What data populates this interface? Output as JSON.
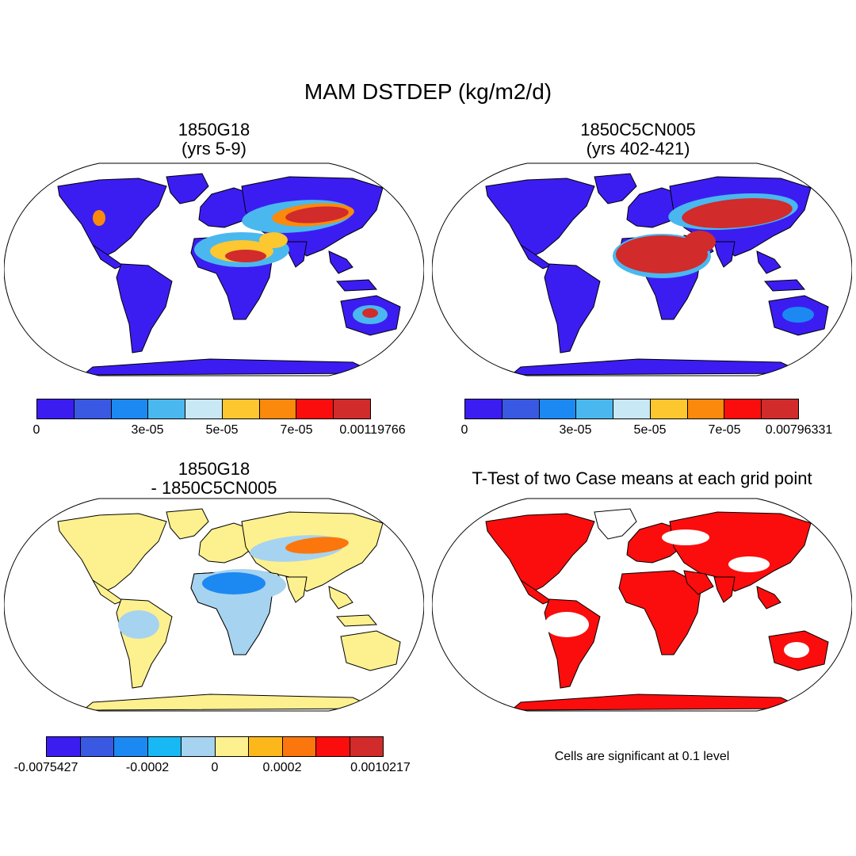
{
  "title": "MAM DSTDEP (kg/m2/d)",
  "panels": [
    {
      "id": "tl",
      "title_line1": "1850G18",
      "title_line2": "(yrs 5-9)",
      "type": "field"
    },
    {
      "id": "tr",
      "title_line1": "1850C5CN005",
      "title_line2": "(yrs 402-421)",
      "type": "field"
    },
    {
      "id": "bl",
      "title_line1": "1850G18",
      "title_line2": "- 1850C5CN005",
      "type": "difference"
    },
    {
      "id": "br",
      "title_line1": "T-Test of two Case means at each grid point",
      "title_line2": "",
      "type": "significance"
    }
  ],
  "colorbars": {
    "top_left": {
      "colors": [
        "#3b1df2",
        "#3959e3",
        "#1c89f2",
        "#4ab8ee",
        "#c8e8f6",
        "#fcc72f",
        "#fb8a0c",
        "#fb0d0d",
        "#d12b2b"
      ],
      "labels": [
        "0",
        "3e-05",
        "5e-05",
        "7e-05",
        "0.00119766"
      ]
    },
    "top_right": {
      "colors": [
        "#3b1df2",
        "#3959e3",
        "#1c89f2",
        "#4ab8ee",
        "#c8e8f6",
        "#fcc72f",
        "#fb8a0c",
        "#fb0d0d",
        "#d12b2b"
      ],
      "labels": [
        "0",
        "3e-05",
        "5e-05",
        "7e-05",
        "0.00796331"
      ]
    },
    "bottom_left": {
      "colors": [
        "#3b1df2",
        "#3959e3",
        "#1c89f2",
        "#17b8f4",
        "#a6d3ef",
        "#fdf08f",
        "#fcb81a",
        "#fb760c",
        "#fb0d0d",
        "#d12b2b"
      ],
      "labels": [
        "-0.0075427",
        "-0.0002",
        "0",
        "0.0002",
        "0.0010217"
      ]
    }
  },
  "significance_note": "Cells are significant at 0.1 level",
  "colors": {
    "low": "#3b1df2",
    "high": "#d12b2b",
    "diff_pos": "#fdf08f",
    "diff_neg": "#a6d3ef",
    "significant": "#fb0d0d"
  }
}
